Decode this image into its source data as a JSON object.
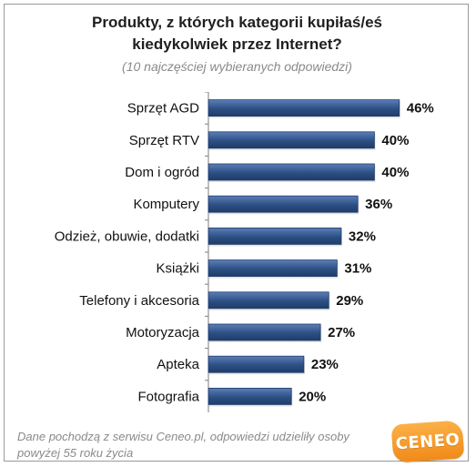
{
  "title": "Produkty, z których kategorii kupiłaś/eś\nkiedykolwiek przez Internet?",
  "subtitle": "(10 najczęściej wybieranych odpowiedzi)",
  "footer_note": "Dane pochodzą z serwisu Ceneo.pl, odpowiedzi udzieliły osoby powyżej 55 roku życia",
  "logo_text": "CENEO",
  "colors": {
    "bar": "#1f3c6b",
    "bar_highlight": "#5a7fb7",
    "axis": "#7f7f7f",
    "text": "#111111",
    "logo": "#f28b19"
  },
  "chart_data": {
    "type": "bar",
    "orientation": "horizontal",
    "categories": [
      "Sprzęt AGD",
      "Sprzęt RTV",
      "Dom i ogród",
      "Komputery",
      "Odzież, obuwie, dodatki",
      "Książki",
      "Telefony i akcesoria",
      "Motoryzacja",
      "Apteka",
      "Fotografia"
    ],
    "values": [
      46,
      40,
      40,
      36,
      32,
      31,
      29,
      27,
      23,
      20
    ],
    "value_suffix": "%",
    "xlim": [
      0,
      50
    ]
  }
}
